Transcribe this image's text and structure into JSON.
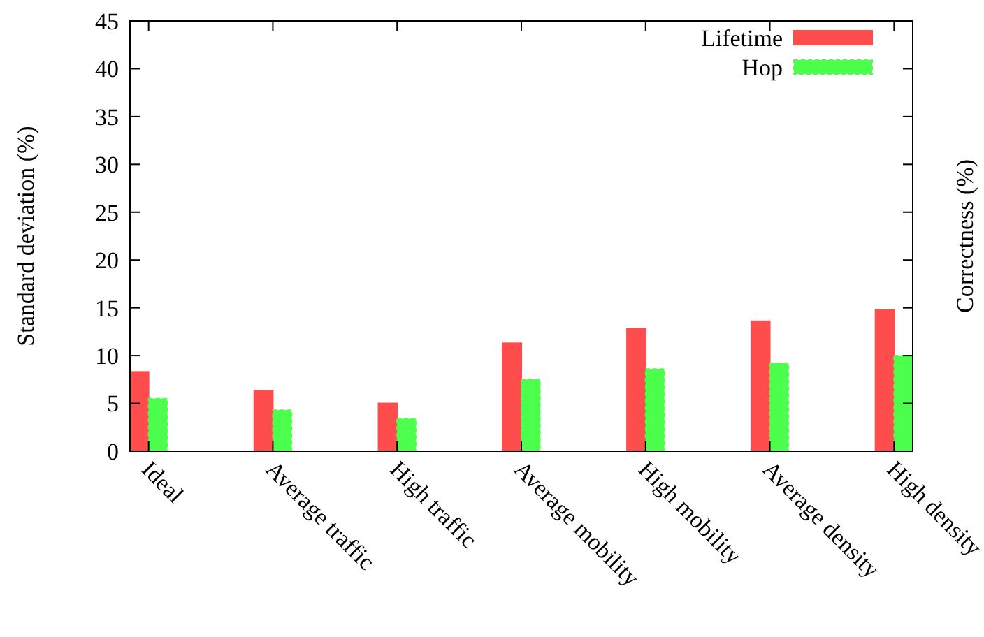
{
  "chart_data": {
    "type": "bar",
    "ylabel": "Standard deviation (%)",
    "y2label": "Correctness (%)",
    "categories": [
      "Ideal",
      "Average traffic",
      "High traffic",
      "Average mobility",
      "High mobility",
      "Average density",
      "High density"
    ],
    "series": [
      {
        "name": "Lifetime",
        "color": "#ff4c4c",
        "values": [
          8.3,
          6.3,
          5.0,
          11.3,
          12.8,
          13.6,
          14.8
        ]
      },
      {
        "name": "Hop",
        "color": "#4cff4c",
        "values": [
          5.5,
          4.3,
          3.4,
          7.5,
          8.6,
          9.2,
          10.0
        ]
      }
    ],
    "ylim": [
      0,
      45
    ],
    "yticks": [
      0,
      5,
      10,
      15,
      20,
      25,
      30,
      35,
      40,
      45
    ],
    "grid": false,
    "legend": "top right"
  }
}
